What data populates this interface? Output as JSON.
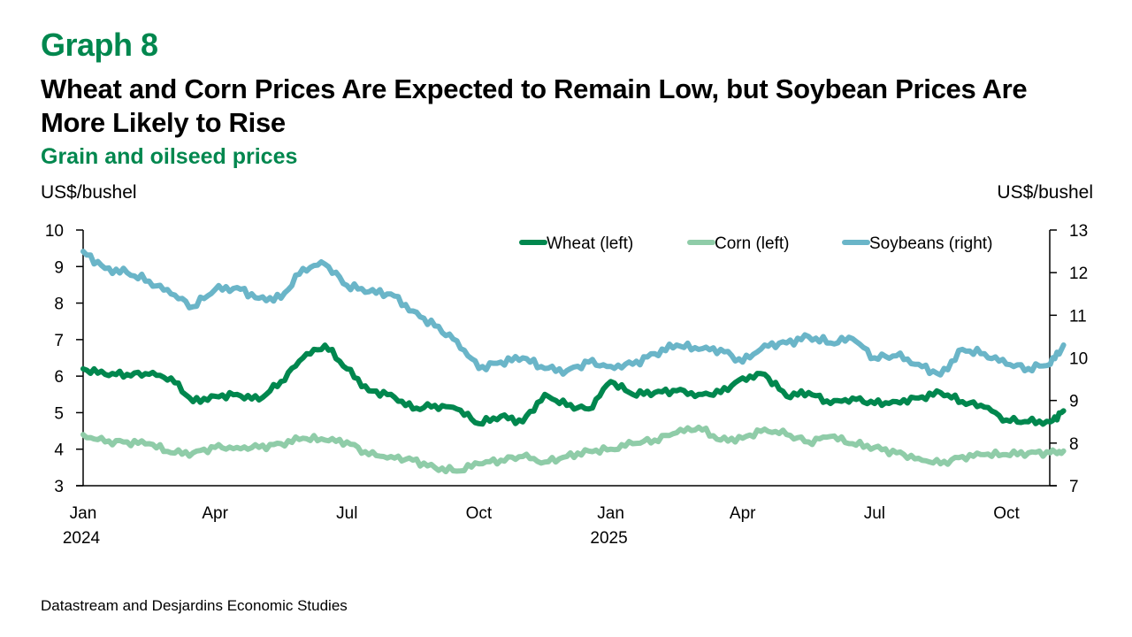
{
  "header": {
    "graph_number": "Graph 8",
    "title": "Wheat and Corn Prices Are Expected to Remain Low, but Soybean Prices Are More Likely to Rise",
    "subtitle": "Grain and oilseed prices"
  },
  "footer": {
    "source": "Datastream and Desjardins Economic Studies"
  },
  "chart_data": {
    "type": "line",
    "title": "Grain and oilseed prices",
    "ylabel_left": "US$/bushel",
    "ylabel_right": "US$/bushel",
    "ylim_left": [
      3,
      10
    ],
    "ylim_right": [
      7,
      13
    ],
    "yticks_left": [
      "3",
      "4",
      "5",
      "6",
      "7",
      "8",
      "9",
      "10"
    ],
    "yticks_right": [
      "7",
      "8",
      "9",
      "10",
      "11",
      "12",
      "13"
    ],
    "xlim": [
      0,
      22.3
    ],
    "x_unit": "months since Jan 2024",
    "xticks": [
      {
        "x": 0,
        "label": "Jan",
        "year": "2024"
      },
      {
        "x": 3,
        "label": "Apr",
        "year": ""
      },
      {
        "x": 6,
        "label": "Jul",
        "year": ""
      },
      {
        "x": 9,
        "label": "Oct",
        "year": ""
      },
      {
        "x": 12,
        "label": "Jan",
        "year": "2025"
      },
      {
        "x": 15,
        "label": "Apr",
        "year": ""
      },
      {
        "x": 18,
        "label": "Jul",
        "year": ""
      },
      {
        "x": 21,
        "label": "Oct",
        "year": ""
      }
    ],
    "grid": false,
    "legend_position": "top-right",
    "x": [
      0,
      0.5,
      1,
      1.5,
      2,
      2.5,
      3,
      3.5,
      4,
      4.5,
      5,
      5.5,
      6,
      6.5,
      7,
      7.5,
      8,
      8.5,
      9,
      9.5,
      10,
      10.5,
      11,
      11.5,
      12,
      12.5,
      13,
      13.5,
      14,
      14.5,
      15,
      15.5,
      16,
      16.5,
      17,
      17.5,
      18,
      18.5,
      19,
      19.5,
      20,
      20.5,
      21,
      21.5,
      22,
      22.3
    ],
    "series": [
      {
        "name": "Wheat (left)",
        "axis": "left",
        "color": "#00874e",
        "values": [
          6.2,
          6.05,
          6.05,
          6.05,
          5.95,
          5.3,
          5.45,
          5.5,
          5.35,
          5.85,
          6.5,
          6.85,
          6.2,
          5.6,
          5.5,
          5.1,
          5.2,
          5.1,
          4.7,
          4.9,
          4.75,
          5.5,
          5.2,
          5.1,
          5.85,
          5.5,
          5.55,
          5.6,
          5.5,
          5.55,
          5.95,
          6.05,
          5.45,
          5.55,
          5.25,
          5.4,
          5.25,
          5.3,
          5.4,
          5.55,
          5.3,
          5.15,
          4.8,
          4.75,
          4.75,
          5.05
        ]
      },
      {
        "name": "Corn (left)",
        "axis": "left",
        "color": "#8fcca8",
        "values": [
          4.4,
          4.2,
          4.2,
          4.15,
          3.9,
          3.9,
          4.05,
          4.05,
          4.05,
          4.15,
          4.3,
          4.25,
          4.2,
          3.85,
          3.8,
          3.7,
          3.5,
          3.4,
          3.6,
          3.7,
          3.8,
          3.65,
          3.8,
          3.95,
          4.0,
          4.15,
          4.25,
          4.45,
          4.6,
          4.25,
          4.3,
          4.55,
          4.4,
          4.2,
          4.35,
          4.15,
          4.05,
          3.9,
          3.75,
          3.6,
          3.8,
          3.85,
          3.85,
          3.9,
          3.9,
          3.95
        ]
      },
      {
        "name": "Soybeans (right)",
        "axis": "right",
        "color": "#6ab5c8",
        "values": [
          12.5,
          12.1,
          12.0,
          11.8,
          11.5,
          11.2,
          11.6,
          11.65,
          11.4,
          11.4,
          12.1,
          12.2,
          11.7,
          11.55,
          11.5,
          11.1,
          10.75,
          10.4,
          9.75,
          9.9,
          10.0,
          9.75,
          9.7,
          9.9,
          9.8,
          9.85,
          10.1,
          10.3,
          10.2,
          10.2,
          9.9,
          10.3,
          10.35,
          10.5,
          10.35,
          10.45,
          10.0,
          10.05,
          9.85,
          9.6,
          10.2,
          10.1,
          9.85,
          9.75,
          9.85,
          10.3
        ]
      }
    ]
  }
}
